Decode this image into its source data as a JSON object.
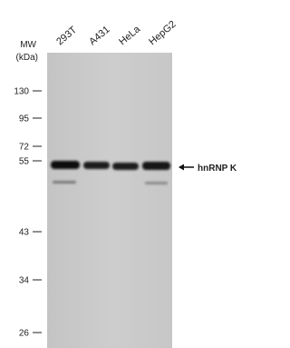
{
  "lanes": [
    "293T",
    "A431",
    "HeLa",
    "HepG2"
  ],
  "mw_header": [
    "MW",
    "(kDa)"
  ],
  "mw_markers": [
    "130",
    "95",
    "72",
    "55",
    "43",
    "34",
    "26"
  ],
  "band_label": "hnRNP K"
}
